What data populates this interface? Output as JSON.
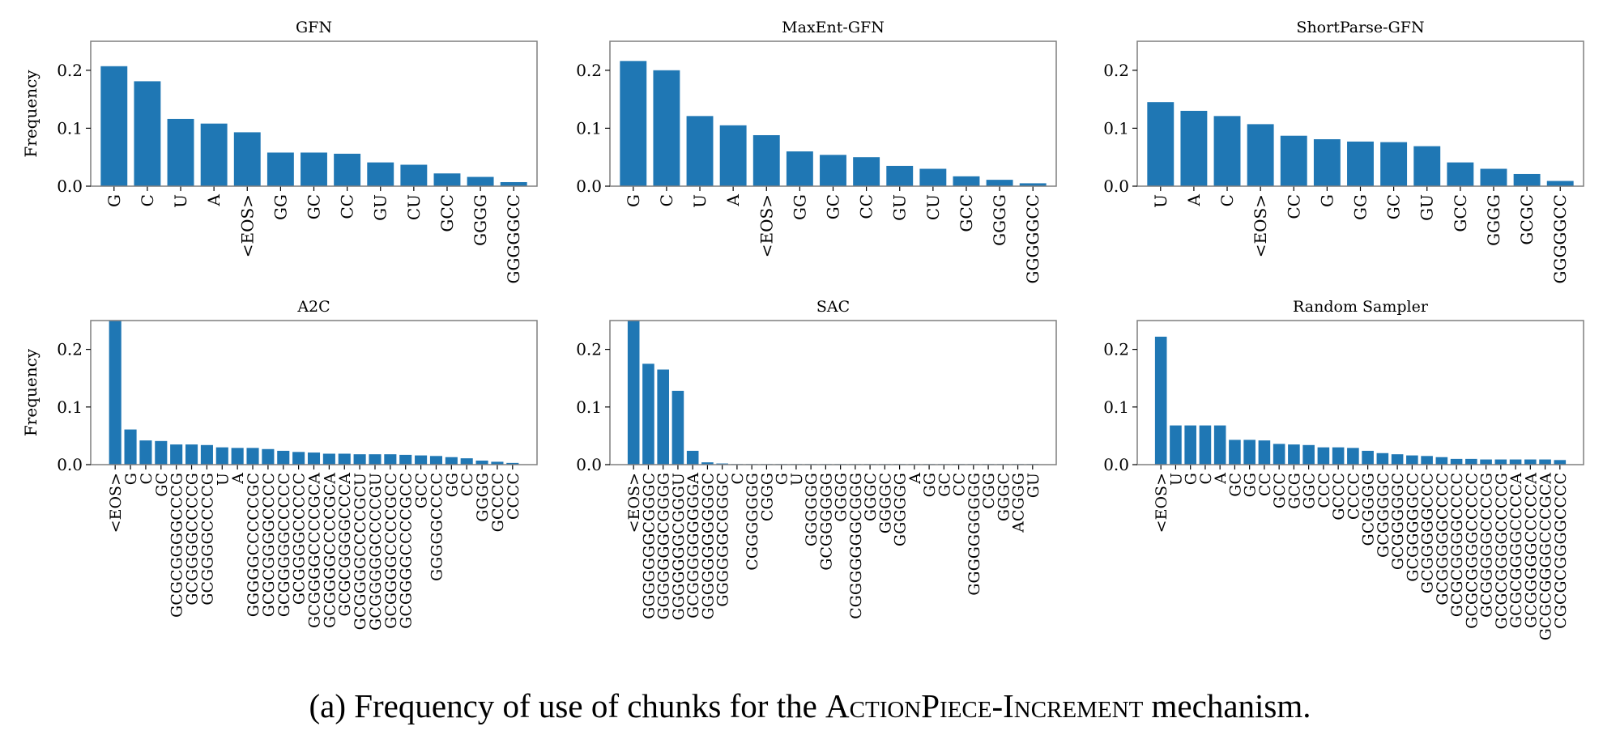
{
  "colors": {
    "bar": "#1f77b4",
    "axis": "#000000",
    "frame": "#7f7f7f"
  },
  "chart_data": [
    {
      "type": "bar",
      "title": "GFN",
      "ylabel": "Frequency",
      "ylim": [
        0,
        0.25
      ],
      "yticks": [
        "0.0",
        "0.1",
        "0.2"
      ],
      "categories": [
        "G",
        "C",
        "U",
        "A",
        "<EOS>",
        "GG",
        "GC",
        "CC",
        "GU",
        "CU",
        "GCC",
        "GGGG",
        "GGGGGCC"
      ],
      "values": [
        0.207,
        0.181,
        0.116,
        0.108,
        0.093,
        0.058,
        0.058,
        0.056,
        0.041,
        0.037,
        0.022,
        0.016,
        0.007
      ]
    },
    {
      "type": "bar",
      "title": "MaxEnt-GFN",
      "ylabel": "",
      "ylim": [
        0,
        0.25
      ],
      "yticks": [
        "0.0",
        "0.1",
        "0.2"
      ],
      "categories": [
        "G",
        "C",
        "U",
        "A",
        "<EOS>",
        "GG",
        "GC",
        "CC",
        "GU",
        "CU",
        "GCC",
        "GGGG",
        "GGGGGCC"
      ],
      "values": [
        0.216,
        0.2,
        0.121,
        0.105,
        0.088,
        0.06,
        0.054,
        0.05,
        0.035,
        0.03,
        0.017,
        0.011,
        0.005
      ]
    },
    {
      "type": "bar",
      "title": "ShortParse-GFN",
      "ylabel": "",
      "ylim": [
        0,
        0.25
      ],
      "yticks": [
        "0.0",
        "0.1",
        "0.2"
      ],
      "categories": [
        "U",
        "A",
        "C",
        "<EOS>",
        "CC",
        "G",
        "GG",
        "GC",
        "GU",
        "GCC",
        "GGGG",
        "GCGC",
        "GGGGGCC"
      ],
      "values": [
        0.145,
        0.13,
        0.121,
        0.107,
        0.087,
        0.081,
        0.077,
        0.076,
        0.069,
        0.041,
        0.03,
        0.021,
        0.009
      ]
    },
    {
      "type": "bar",
      "title": "A2C",
      "ylabel": "Frequency",
      "ylim": [
        0,
        0.25
      ],
      "yticks": [
        "0.0",
        "0.1",
        "0.2"
      ],
      "categories": [
        "<EOS>",
        "G",
        "C",
        "GC",
        "GCGCGGGGCCCG",
        "GCGGGGCCCCG",
        "GCGGGGCCCCG",
        "U",
        "A",
        "GGGGGCCCCCGC",
        "GCGCGGGGCCCC",
        "GCGGGGGCCCCC",
        "GCGGGGCCCCC",
        "GCGGGGCCCCGCA",
        "GCGGGGCCCCGCA",
        "GCGCGGGGCCCA",
        "GCGGGGCCCCGCU",
        "GCGGGGGCCCCGU",
        "GCGGGGCCCCGCC",
        "GCGGGGCCCCGCC",
        "GCC",
        "GGGGGCCCC",
        "GG",
        "CC",
        "GGGG",
        "GCCCC",
        "CCCC"
      ],
      "values": [
        0.25,
        0.061,
        0.042,
        0.041,
        0.035,
        0.035,
        0.034,
        0.03,
        0.029,
        0.029,
        0.027,
        0.024,
        0.022,
        0.021,
        0.019,
        0.019,
        0.018,
        0.018,
        0.018,
        0.017,
        0.016,
        0.015,
        0.013,
        0.011,
        0.007,
        0.005,
        0.003
      ]
    },
    {
      "type": "bar",
      "title": "SAC",
      "ylabel": "",
      "ylim": [
        0,
        0.25
      ],
      "yticks": [
        "0.0",
        "0.1",
        "0.2"
      ],
      "categories": [
        "<EOS>",
        "GGGGGGGCGGGC",
        "GGGGGGGCGGGG",
        "GGGGGGGCGGGU",
        "GCGGGGGGGGGA",
        "GGGGGGGGGGGC",
        "GGGGGGCGGGC",
        "C",
        "CGGGGGGG",
        "CGGG",
        "G",
        "U",
        "GGGGGG",
        "GCGGGGGG",
        "GGGG",
        "CGGGGGGGCGGG",
        "GGGC",
        "GGGGC",
        "GGGGGG",
        "A",
        "GG",
        "GC",
        "CC",
        "GGGGGGGGGG",
        "CGG",
        "GGGC",
        "ACGGG",
        "GU"
      ],
      "values": [
        0.25,
        0.175,
        0.165,
        0.128,
        0.024,
        0.004,
        0.002,
        0.001,
        0.001,
        0.001,
        0.001,
        0.001,
        0.001,
        0.001,
        0.001,
        0.001,
        0.001,
        0.001,
        0.001,
        0.001,
        0.001,
        0.001,
        0.001,
        0.001,
        0.001,
        0.001,
        0.001,
        0.001
      ]
    },
    {
      "type": "bar",
      "title": "Random Sampler",
      "ylabel": "",
      "ylim": [
        0,
        0.25
      ],
      "yticks": [
        "0.0",
        "0.1",
        "0.2"
      ],
      "categories": [
        "<EOS>",
        "U",
        "G",
        "C",
        "A",
        "GC",
        "GG",
        "CC",
        "GCC",
        "GCG",
        "GGC",
        "CCC",
        "GCCC",
        "CCCC",
        "GCGGGG",
        "GCGGGGC",
        "GCGGGGGC",
        "GCGGGGGCC",
        "GCGGGGGCCC",
        "GCGGGGGCCCC",
        "GCGCGGGGCCCC",
        "GCGCGGGGCCCCC",
        "GCGGGGGCCCCG",
        "GCGCGGGGCCCCG",
        "GCGCGGGGCCCCA",
        "GCGGGGGCCCCCA",
        "GCGCGGGGCCCGCA",
        "CGCGCGGGGCCCC"
      ],
      "values": [
        0.222,
        0.068,
        0.068,
        0.068,
        0.068,
        0.043,
        0.043,
        0.042,
        0.036,
        0.035,
        0.034,
        0.03,
        0.03,
        0.029,
        0.024,
        0.02,
        0.018,
        0.016,
        0.015,
        0.013,
        0.01,
        0.01,
        0.009,
        0.009,
        0.009,
        0.009,
        0.009,
        0.008
      ]
    }
  ],
  "caption": {
    "prefix": "(a) Frequency of use of chunks for the ",
    "name": "ActionPiece-Increment",
    "suffix": " mechanism."
  }
}
